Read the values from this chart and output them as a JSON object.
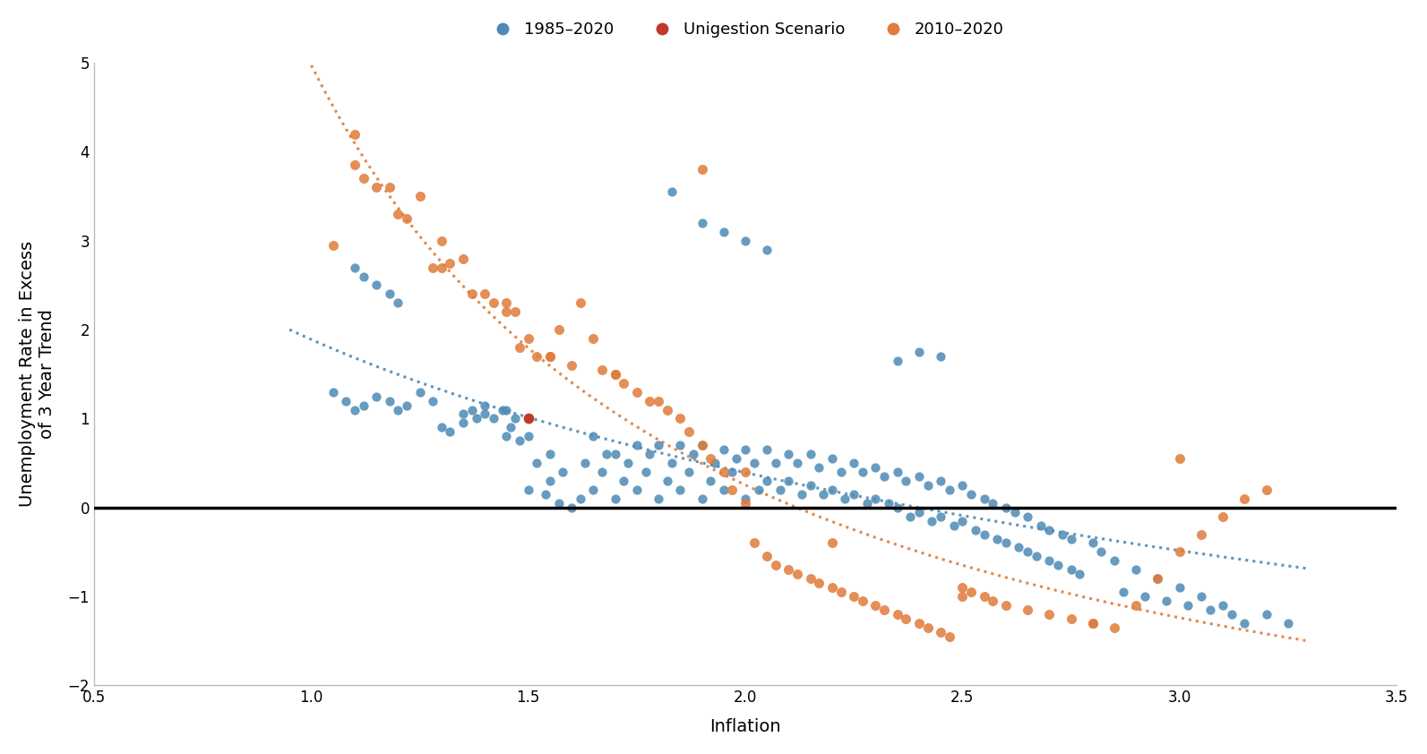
{
  "blue_x": [
    1.05,
    1.08,
    1.1,
    1.12,
    1.15,
    1.18,
    1.2,
    1.22,
    1.25,
    1.28,
    1.3,
    1.32,
    1.35,
    1.35,
    1.37,
    1.38,
    1.4,
    1.4,
    1.42,
    1.44,
    1.45,
    1.45,
    1.46,
    1.47,
    1.48,
    1.5,
    1.5,
    1.52,
    1.54,
    1.55,
    1.55,
    1.57,
    1.58,
    1.6,
    1.62,
    1.63,
    1.65,
    1.65,
    1.67,
    1.68,
    1.7,
    1.7,
    1.72,
    1.73,
    1.75,
    1.75,
    1.77,
    1.78,
    1.8,
    1.8,
    1.82,
    1.83,
    1.85,
    1.85,
    1.87,
    1.88,
    1.9,
    1.9,
    1.92,
    1.93,
    1.95,
    1.95,
    1.97,
    1.98,
    2.0,
    2.0,
    2.02,
    2.03,
    2.05,
    2.05,
    2.07,
    2.08,
    2.1,
    2.1,
    2.12,
    2.13,
    2.15,
    2.15,
    2.17,
    2.18,
    2.2,
    2.2,
    2.22,
    2.23,
    2.25,
    2.25,
    2.27,
    2.28,
    2.3,
    2.3,
    2.32,
    2.33,
    2.35,
    2.35,
    2.37,
    2.38,
    2.4,
    2.4,
    2.42,
    2.43,
    2.45,
    2.45,
    2.47,
    2.48,
    2.5,
    2.5,
    2.52,
    2.53,
    2.55,
    2.55,
    2.57,
    2.58,
    2.6,
    2.6,
    2.62,
    2.63,
    2.65,
    2.65,
    2.67,
    2.68,
    2.7,
    2.7,
    2.72,
    2.73,
    2.75,
    2.75,
    2.77,
    2.8,
    2.82,
    2.85,
    2.87,
    2.9,
    2.92,
    2.95,
    2.97,
    3.0,
    3.02,
    3.05,
    3.07,
    3.1,
    3.12,
    3.15,
    3.2,
    3.25,
    1.1,
    1.12,
    1.15,
    1.18,
    1.2,
    1.83,
    1.9,
    1.95,
    2.0,
    2.05,
    2.35,
    2.4,
    2.45
  ],
  "blue_y": [
    1.3,
    1.2,
    1.1,
    1.15,
    1.25,
    1.2,
    1.1,
    1.15,
    1.3,
    1.2,
    0.9,
    0.85,
    1.05,
    0.95,
    1.1,
    1.0,
    1.15,
    1.05,
    1.0,
    1.1,
    0.8,
    1.1,
    0.9,
    1.0,
    0.75,
    0.2,
    0.8,
    0.5,
    0.15,
    0.3,
    0.6,
    0.05,
    0.4,
    0.0,
    0.1,
    0.5,
    0.2,
    0.8,
    0.4,
    0.6,
    0.1,
    0.6,
    0.3,
    0.5,
    0.2,
    0.7,
    0.4,
    0.6,
    0.1,
    0.7,
    0.3,
    0.5,
    0.2,
    0.7,
    0.4,
    0.6,
    0.1,
    0.7,
    0.3,
    0.5,
    0.2,
    0.65,
    0.4,
    0.55,
    0.1,
    0.65,
    0.5,
    0.2,
    0.65,
    0.3,
    0.5,
    0.2,
    0.6,
    0.3,
    0.5,
    0.15,
    0.6,
    0.25,
    0.45,
    0.15,
    0.55,
    0.2,
    0.4,
    0.1,
    0.5,
    0.15,
    0.4,
    0.05,
    0.45,
    0.1,
    0.35,
    0.05,
    0.4,
    0.0,
    0.3,
    -0.1,
    0.35,
    -0.05,
    0.25,
    -0.15,
    0.3,
    -0.1,
    0.2,
    -0.2,
    0.25,
    -0.15,
    0.15,
    -0.25,
    0.1,
    -0.3,
    0.05,
    -0.35,
    0.0,
    -0.4,
    -0.05,
    -0.45,
    -0.1,
    -0.5,
    -0.55,
    -0.2,
    -0.6,
    -0.25,
    -0.65,
    -0.3,
    -0.7,
    -0.35,
    -0.75,
    -0.4,
    -0.5,
    -0.6,
    -0.95,
    -0.7,
    -1.0,
    -0.8,
    -1.05,
    -0.9,
    -1.1,
    -1.0,
    -1.15,
    -1.1,
    -1.2,
    -1.3,
    -1.2,
    -1.3,
    2.7,
    2.6,
    2.5,
    2.4,
    2.3,
    3.55,
    3.2,
    3.1,
    3.0,
    2.9,
    1.65,
    1.75,
    1.7
  ],
  "orange_x": [
    1.05,
    1.1,
    1.12,
    1.15,
    1.18,
    1.2,
    1.22,
    1.25,
    1.28,
    1.3,
    1.32,
    1.35,
    1.37,
    1.4,
    1.42,
    1.45,
    1.47,
    1.48,
    1.5,
    1.52,
    1.55,
    1.57,
    1.6,
    1.62,
    1.65,
    1.67,
    1.7,
    1.72,
    1.75,
    1.78,
    1.8,
    1.82,
    1.85,
    1.87,
    1.9,
    1.92,
    1.95,
    1.97,
    2.0,
    2.02,
    2.05,
    2.07,
    2.1,
    2.12,
    2.15,
    2.17,
    2.2,
    2.22,
    2.25,
    2.27,
    2.3,
    2.32,
    2.35,
    2.37,
    2.4,
    2.42,
    2.45,
    2.47,
    2.5,
    2.52,
    2.55,
    2.57,
    2.6,
    2.65,
    2.7,
    2.75,
    2.8,
    2.85,
    2.9,
    2.95,
    3.0,
    3.05,
    3.1,
    3.15,
    3.2,
    1.1,
    1.3,
    1.45,
    1.55,
    1.7,
    1.9,
    2.0,
    2.2,
    2.5,
    2.8,
    3.0
  ],
  "orange_y": [
    2.95,
    4.2,
    3.7,
    3.6,
    3.6,
    3.3,
    3.25,
    3.5,
    2.7,
    3.0,
    2.75,
    2.8,
    2.4,
    2.4,
    2.3,
    2.3,
    2.2,
    1.8,
    1.9,
    1.7,
    1.7,
    2.0,
    1.6,
    2.3,
    1.9,
    1.55,
    1.5,
    1.4,
    1.3,
    1.2,
    1.2,
    1.1,
    1.0,
    0.85,
    0.7,
    0.55,
    0.4,
    0.2,
    0.05,
    -0.4,
    -0.55,
    -0.65,
    -0.7,
    -0.75,
    -0.8,
    -0.85,
    -0.9,
    -0.95,
    -1.0,
    -1.05,
    -1.1,
    -1.15,
    -1.2,
    -1.25,
    -1.3,
    -1.35,
    -1.4,
    -1.45,
    -0.9,
    -0.95,
    -1.0,
    -1.05,
    -1.1,
    -1.15,
    -1.2,
    -1.25,
    -1.3,
    -1.35,
    -1.1,
    -0.8,
    -0.5,
    -0.3,
    -0.1,
    0.1,
    0.2,
    3.85,
    2.7,
    2.2,
    1.7,
    1.5,
    3.8,
    0.4,
    -0.4,
    -1.0,
    -1.3,
    0.55
  ],
  "red_x": [
    1.5
  ],
  "red_y": [
    1.0
  ],
  "blue_color": "#4d8ab5",
  "orange_color": "#e07b39",
  "red_color": "#c0392b",
  "xlim": [
    0.5,
    3.5
  ],
  "ylim": [
    -2.0,
    5.0
  ],
  "xticks": [
    0.5,
    1.0,
    1.5,
    2.0,
    2.5,
    3.0,
    3.5
  ],
  "yticks": [
    -2.0,
    -1.0,
    0.0,
    1.0,
    2.0,
    3.0,
    4.0,
    5.0
  ],
  "xlabel": "Inflation",
  "ylabel": "Unemployment Rate in Excess\nof 3 Year Trend",
  "legend_labels": [
    "1985–2020",
    "Unigestion Scenario",
    "2010–2020"
  ],
  "legend_colors": [
    "#4d8ab5",
    "#c0392b",
    "#e07b39"
  ],
  "marker_size": 55,
  "blue_trend_params": [
    3.2,
    0.55,
    -0.22
  ],
  "orange_trend_params": [
    5.5,
    0.55,
    -0.28
  ]
}
